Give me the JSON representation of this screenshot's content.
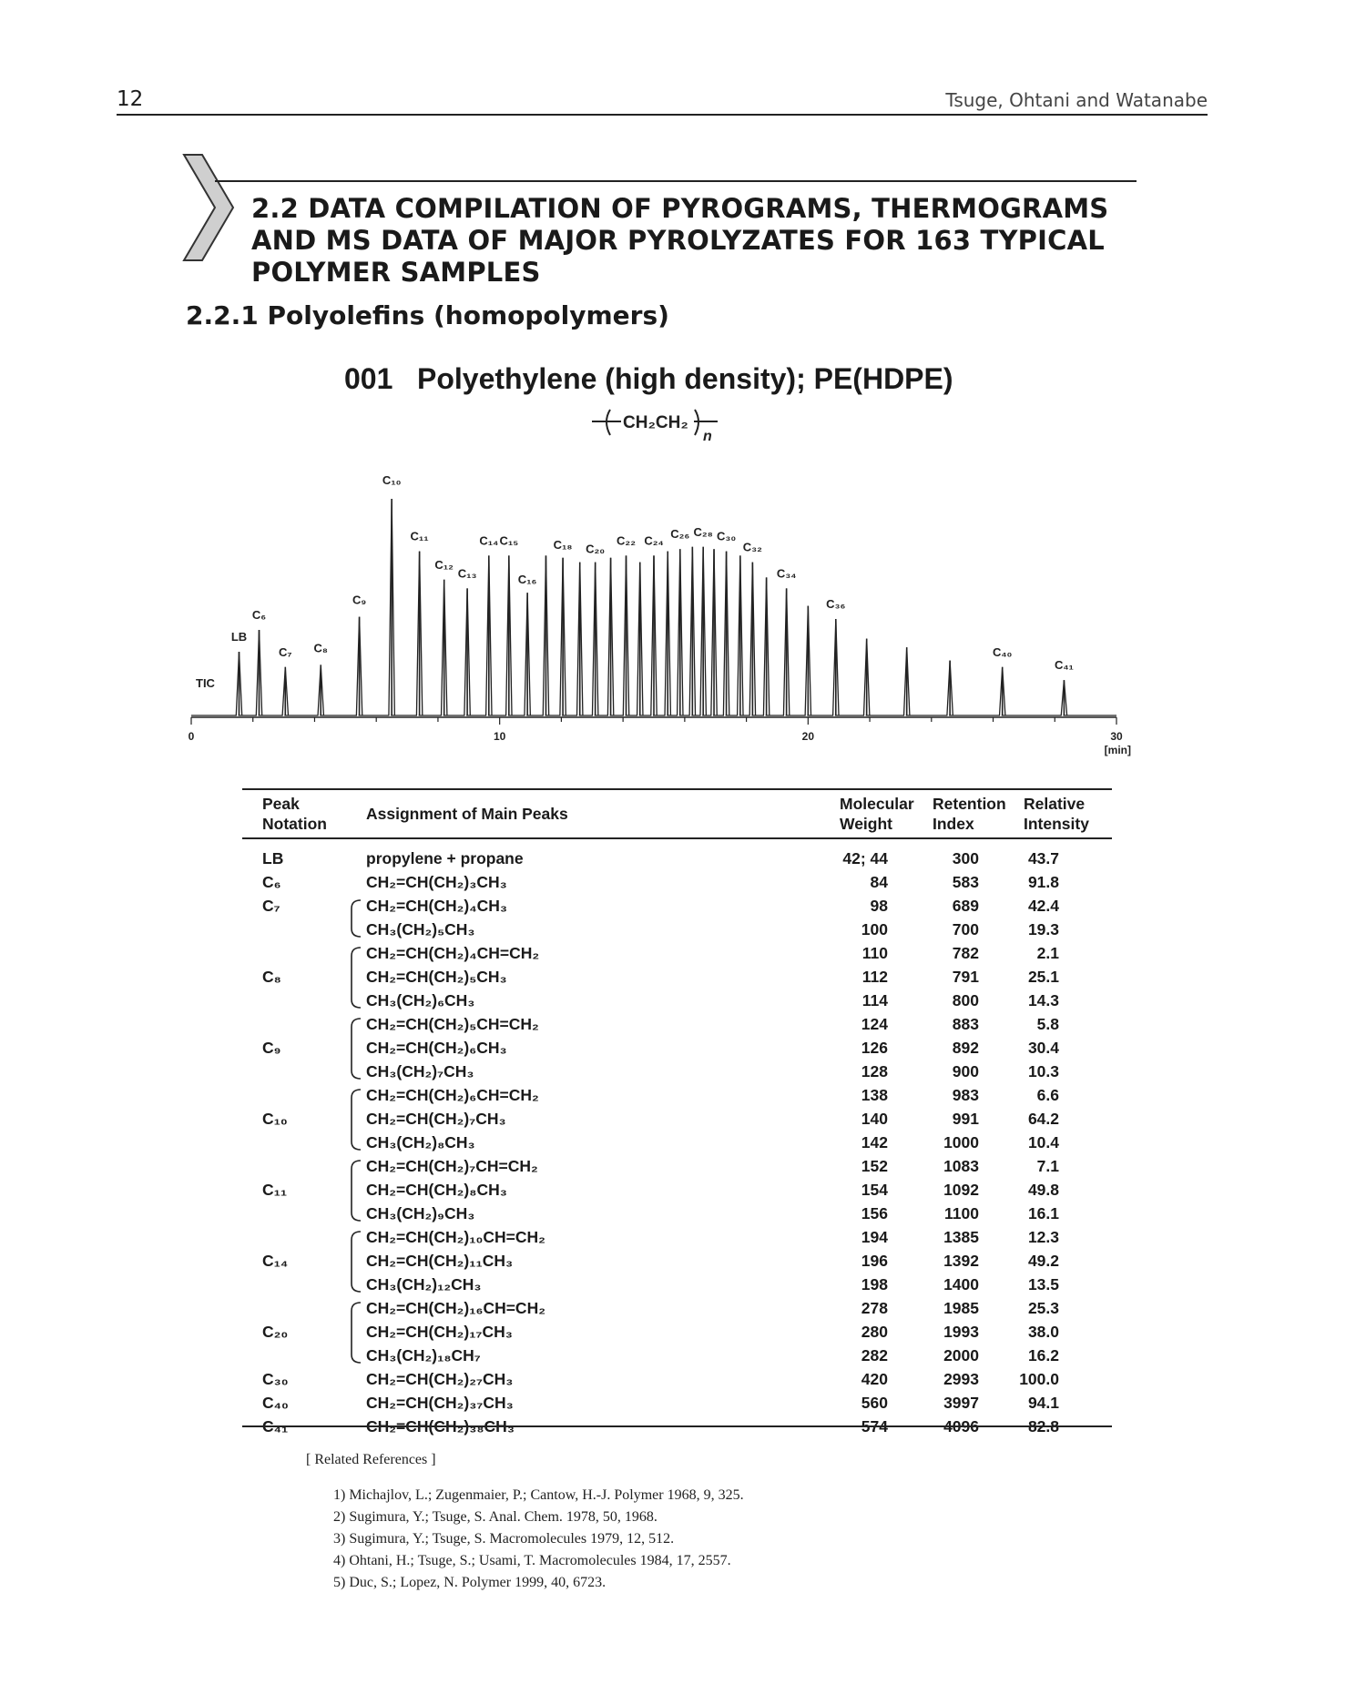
{
  "page": {
    "number": "12",
    "running_head": "Tsuge, Ohtani and Watanabe"
  },
  "section": {
    "title": "2.2 DATA COMPILATION OF PYROGRAMS, THERMOGRAMS AND MS DATA OF MAJOR PYROLYZATES FOR 163 TYPICAL POLYMER SAMPLES",
    "subsection": "2.2.1 Polyolefins (homopolymers)"
  },
  "sample": {
    "number": "001",
    "name": "Polyethylene (high density); PE(HDPE)",
    "repeat_unit": "CH₂CH₂",
    "subscript": "n"
  },
  "chart_data": {
    "type": "line",
    "trace_label": "TIC",
    "x_ticks": [
      "0",
      "10",
      "20",
      "30"
    ],
    "x_unit": "[min]",
    "xlim": [
      0,
      30
    ],
    "peaks": [
      {
        "label": "LB",
        "t": 1.55,
        "h": 0.3
      },
      {
        "label": "C₆",
        "t": 2.2,
        "h": 0.4
      },
      {
        "label": "C₇",
        "t": 3.05,
        "h": 0.23
      },
      {
        "label": "C₈",
        "t": 4.2,
        "h": 0.24
      },
      {
        "label": "C₉",
        "t": 5.45,
        "h": 0.46
      },
      {
        "label": "C₁₀",
        "t": 6.5,
        "h": 1.0
      },
      {
        "label": "C₁₁",
        "t": 7.4,
        "h": 0.76
      },
      {
        "label": "C₁₂",
        "t": 8.2,
        "h": 0.63
      },
      {
        "label": "C₁₃",
        "t": 8.95,
        "h": 0.59
      },
      {
        "label": "C₁₄",
        "t": 9.65,
        "h": 0.74
      },
      {
        "label": "C₁₅",
        "t": 10.3,
        "h": 0.74
      },
      {
        "label": "C₁₆",
        "t": 10.9,
        "h": 0.57
      },
      {
        "label": "",
        "t": 11.5,
        "h": 0.74
      },
      {
        "label": "C₁₈",
        "t": 12.05,
        "h": 0.73
      },
      {
        "label": "",
        "t": 12.6,
        "h": 0.71
      },
      {
        "label": "C₂₀",
        "t": 13.1,
        "h": 0.71
      },
      {
        "label": "",
        "t": 13.6,
        "h": 0.73
      },
      {
        "label": "C₂₂",
        "t": 14.1,
        "h": 0.74
      },
      {
        "label": "",
        "t": 14.55,
        "h": 0.71
      },
      {
        "label": "C₂₄",
        "t": 15.0,
        "h": 0.74
      },
      {
        "label": "",
        "t": 15.45,
        "h": 0.76
      },
      {
        "label": "C₂₆",
        "t": 15.85,
        "h": 0.77
      },
      {
        "label": "",
        "t": 16.25,
        "h": 0.78
      },
      {
        "label": "C₂₈",
        "t": 16.6,
        "h": 0.78
      },
      {
        "label": "",
        "t": 16.95,
        "h": 0.77
      },
      {
        "label": "C₃₀",
        "t": 17.35,
        "h": 0.76
      },
      {
        "label": "",
        "t": 17.8,
        "h": 0.74
      },
      {
        "label": "C₃₂",
        "t": 18.2,
        "h": 0.71
      },
      {
        "label": "",
        "t": 18.65,
        "h": 0.64
      },
      {
        "label": "C₃₄",
        "t": 19.3,
        "h": 0.59
      },
      {
        "label": "",
        "t": 20.0,
        "h": 0.51
      },
      {
        "label": "C₃₆",
        "t": 20.9,
        "h": 0.45
      },
      {
        "label": "",
        "t": 21.9,
        "h": 0.36
      },
      {
        "label": "",
        "t": 23.2,
        "h": 0.32
      },
      {
        "label": "",
        "t": 24.6,
        "h": 0.26
      },
      {
        "label": "C₄₀",
        "t": 26.3,
        "h": 0.23
      },
      {
        "label": "C₄₁",
        "t": 28.3,
        "h": 0.17
      }
    ]
  },
  "table": {
    "headers": {
      "peak": "Peak\nNotation",
      "assign": "Assignment of Main Peaks",
      "mw": "Molecular\nWeight",
      "ri": "Retention\nIndex",
      "rel": "Relative\nIntensity"
    },
    "rows": [
      {
        "peak": "LB",
        "assign": "propylene + propane",
        "mw": "42; 44",
        "ri": "300",
        "rel": "43.7"
      },
      {
        "peak": "C₆",
        "assign": "CH₂=CH(CH₂)₃CH₃",
        "mw": "84",
        "ri": "583",
        "rel": "91.8"
      },
      {
        "peak": "C₇",
        "assign": "CH₂=CH(CH₂)₄CH₃",
        "mw": "98",
        "ri": "689",
        "rel": "42.4"
      },
      {
        "peak": "",
        "assign": "CH₃(CH₂)₅CH₃",
        "mw": "100",
        "ri": "700",
        "rel": "19.3"
      },
      {
        "peak": "",
        "assign": "CH₂=CH(CH₂)₄CH=CH₂",
        "mw": "110",
        "ri": "782",
        "rel": "2.1"
      },
      {
        "peak": "C₈",
        "assign": "CH₂=CH(CH₂)₅CH₃",
        "mw": "112",
        "ri": "791",
        "rel": "25.1"
      },
      {
        "peak": "",
        "assign": "CH₃(CH₂)₆CH₃",
        "mw": "114",
        "ri": "800",
        "rel": "14.3"
      },
      {
        "peak": "",
        "assign": "CH₂=CH(CH₂)₅CH=CH₂",
        "mw": "124",
        "ri": "883",
        "rel": "5.8"
      },
      {
        "peak": "C₉",
        "assign": "CH₂=CH(CH₂)₆CH₃",
        "mw": "126",
        "ri": "892",
        "rel": "30.4"
      },
      {
        "peak": "",
        "assign": "CH₃(CH₂)₇CH₃",
        "mw": "128",
        "ri": "900",
        "rel": "10.3"
      },
      {
        "peak": "",
        "assign": "CH₂=CH(CH₂)₆CH=CH₂",
        "mw": "138",
        "ri": "983",
        "rel": "6.6"
      },
      {
        "peak": "C₁₀",
        "assign": "CH₂=CH(CH₂)₇CH₃",
        "mw": "140",
        "ri": "991",
        "rel": "64.2"
      },
      {
        "peak": "",
        "assign": "CH₃(CH₂)₈CH₃",
        "mw": "142",
        "ri": "1000",
        "rel": "10.4"
      },
      {
        "peak": "",
        "assign": "CH₂=CH(CH₂)₇CH=CH₂",
        "mw": "152",
        "ri": "1083",
        "rel": "7.1"
      },
      {
        "peak": "C₁₁",
        "assign": "CH₂=CH(CH₂)₈CH₃",
        "mw": "154",
        "ri": "1092",
        "rel": "49.8"
      },
      {
        "peak": "",
        "assign": "CH₃(CH₂)₉CH₃",
        "mw": "156",
        "ri": "1100",
        "rel": "16.1"
      },
      {
        "peak": "",
        "assign": "CH₂=CH(CH₂)₁₀CH=CH₂",
        "mw": "194",
        "ri": "1385",
        "rel": "12.3"
      },
      {
        "peak": "C₁₄",
        "assign": "CH₂=CH(CH₂)₁₁CH₃",
        "mw": "196",
        "ri": "1392",
        "rel": "49.2"
      },
      {
        "peak": "",
        "assign": "CH₃(CH₂)₁₂CH₃",
        "mw": "198",
        "ri": "1400",
        "rel": "13.5"
      },
      {
        "peak": "",
        "assign": "CH₂=CH(CH₂)₁₆CH=CH₂",
        "mw": "278",
        "ri": "1985",
        "rel": "25.3"
      },
      {
        "peak": "C₂₀",
        "assign": "CH₂=CH(CH₂)₁₇CH₃",
        "mw": "280",
        "ri": "1993",
        "rel": "38.0"
      },
      {
        "peak": "",
        "assign": "CH₃(CH₂)₁₈CH₇",
        "mw": "282",
        "ri": "2000",
        "rel": "16.2"
      },
      {
        "peak": "C₃₀",
        "assign": "CH₂=CH(CH₂)₂₇CH₃",
        "mw": "420",
        "ri": "2993",
        "rel": "100.0"
      },
      {
        "peak": "C₄₀",
        "assign": "CH₂=CH(CH₂)₃₇CH₃",
        "mw": "560",
        "ri": "3997",
        "rel": "94.1"
      },
      {
        "peak": "C₄₁",
        "assign": "CH₂=CH(CH₂)₃₈CH₃",
        "mw": "574",
        "ri": "4096",
        "rel": "82.8"
      }
    ]
  },
  "references": {
    "heading": "[ Related References ]",
    "items": [
      "1) Michajlov, L.; Zugenmaier, P.; Cantow, H.-J. Polymer 1968, 9, 325.",
      "2) Sugimura, Y.; Tsuge, S. Anal. Chem. 1978, 50, 1968.",
      "3) Sugimura, Y.; Tsuge, S. Macromolecules 1979, 12, 512.",
      "4) Ohtani, H.; Tsuge, S.; Usami, T. Macromolecules 1984, 17, 2557.",
      "5) Duc, S.; Lopez, N. Polymer 1999, 40, 6723."
    ]
  }
}
